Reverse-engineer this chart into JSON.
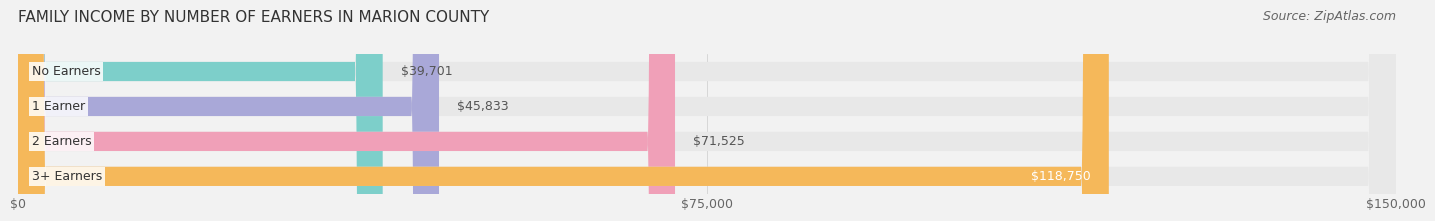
{
  "title": "FAMILY INCOME BY NUMBER OF EARNERS IN MARION COUNTY",
  "source": "Source: ZipAtlas.com",
  "categories": [
    "No Earners",
    "1 Earner",
    "2 Earners",
    "3+ Earners"
  ],
  "values": [
    39701,
    45833,
    71525,
    118750
  ],
  "bar_colors": [
    "#7dcfca",
    "#a9a8d8",
    "#f0a0b8",
    "#f5b85a"
  ],
  "value_labels": [
    "$39,701",
    "$45,833",
    "$71,525",
    "$118,750"
  ],
  "xlim": [
    0,
    150000
  ],
  "xticks": [
    0,
    75000,
    150000
  ],
  "xtick_labels": [
    "$0",
    "$75,000",
    "$150,000"
  ],
  "bar_height": 0.55,
  "background_color": "#f2f2f2",
  "bar_background_color": "#e8e8e8",
  "title_fontsize": 11,
  "source_fontsize": 9,
  "label_fontsize": 9,
  "value_fontsize": 9
}
